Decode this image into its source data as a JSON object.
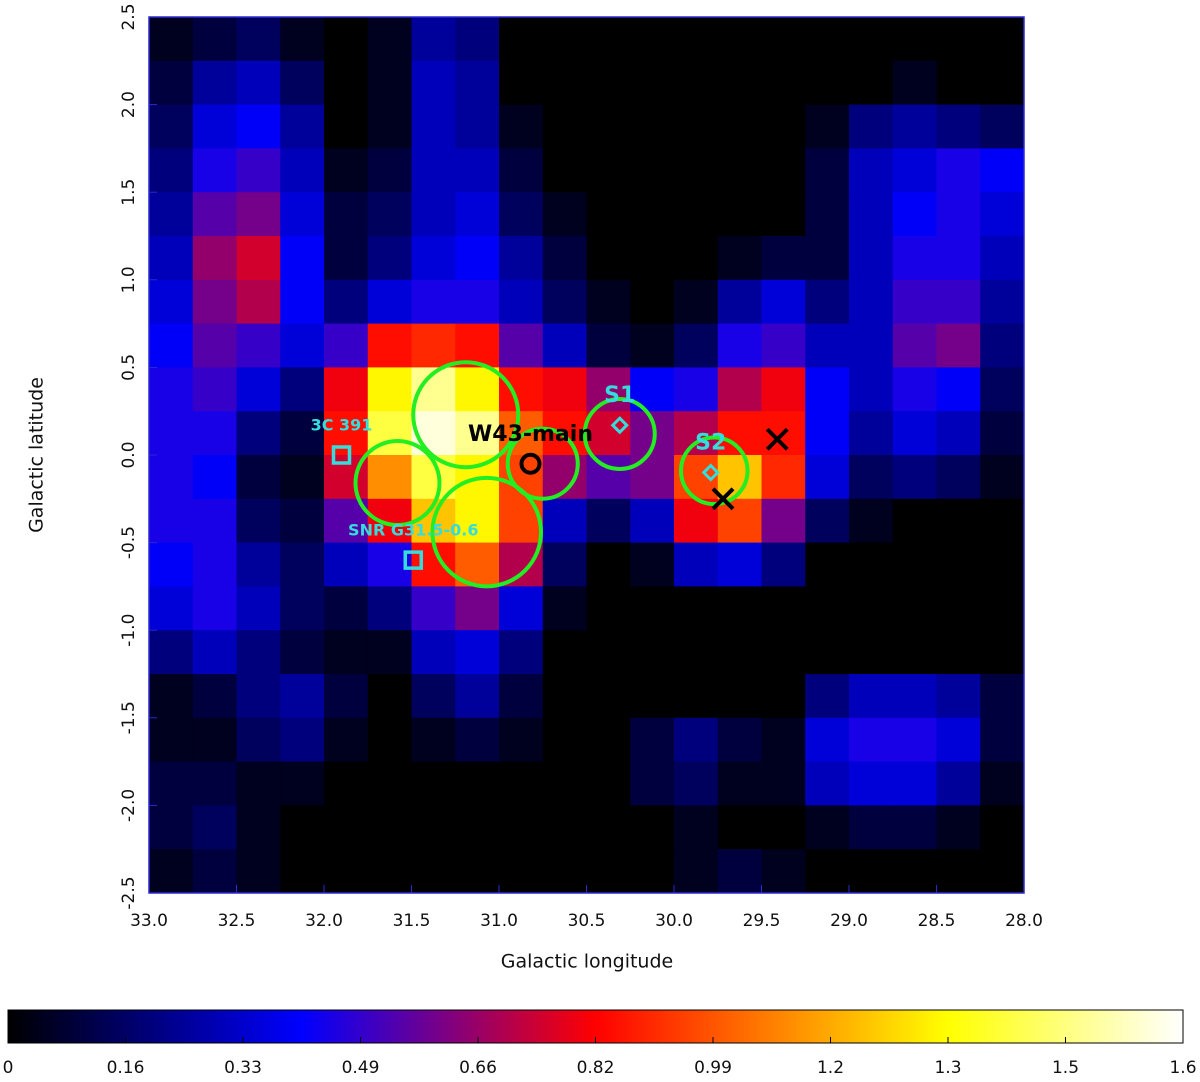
{
  "chart_data": {
    "type": "heatmap",
    "xlabel": "Galactic longitude",
    "ylabel": "Galactic latitude",
    "xlim": [
      33,
      28
    ],
    "ylim": [
      -2.5,
      2.5
    ],
    "xticks": [
      {
        "value": 33,
        "label": "33.0"
      },
      32.5,
      {
        "value": 32,
        "label": "32.0"
      },
      31.5,
      {
        "value": 31,
        "label": "31.0"
      },
      30.5,
      {
        "value": 30,
        "label": "30.0"
      },
      29.5,
      {
        "value": 29,
        "label": "29.0"
      },
      28.5,
      {
        "value": 28,
        "label": "28.0"
      }
    ],
    "yticks": [
      -2.5,
      {
        "value": -2,
        "label": "-2.0"
      },
      -1.5,
      {
        "value": -1,
        "label": "-1.0"
      },
      -0.5,
      {
        "value": 0,
        "label": "0.0"
      },
      0.5,
      {
        "value": 1,
        "label": "1.0"
      },
      1.5,
      {
        "value": 2,
        "label": "2.0"
      },
      2.5
    ],
    "colormap": [
      "#000000",
      "#0000ff",
      "#ff0000",
      "#ffff00",
      "#ffffff"
    ],
    "colormap_positions": [
      0,
      0.25,
      0.5,
      0.8,
      1
    ],
    "zlim": [
      0,
      1.645
    ],
    "zticks": [
      0,
      {
        "value": 0.1645,
        "label": "0.16"
      },
      {
        "value": 0.329,
        "label": "0.33"
      },
      {
        "value": 0.4935,
        "label": "0.49"
      },
      {
        "value": 0.658,
        "label": "0.66"
      },
      {
        "value": 0.8225,
        "label": "0.82"
      },
      {
        "value": 0.987,
        "label": "0.99"
      },
      {
        "value": 1.1515,
        "label": "1.2"
      },
      {
        "value": 1.316,
        "label": "1.3"
      },
      {
        "value": 1.4805,
        "label": "1.5"
      },
      {
        "value": 1.645,
        "label": "1.6"
      }
    ],
    "z": [
      [
        0.05,
        0.1,
        0.15,
        0.05,
        0,
        0.05,
        0.25,
        0.2,
        0,
        0,
        0,
        0,
        0,
        0,
        0,
        0,
        0,
        0,
        0,
        0
      ],
      [
        0.1,
        0.25,
        0.3,
        0.15,
        0,
        0.05,
        0.3,
        0.25,
        0,
        0,
        0,
        0,
        0,
        0,
        0,
        0,
        0,
        0.05,
        0,
        0
      ],
      [
        0.15,
        0.35,
        0.4,
        0.25,
        0,
        0.05,
        0.3,
        0.25,
        0.05,
        0,
        0,
        0,
        0,
        0,
        0,
        0.05,
        0.2,
        0.25,
        0.2,
        0.15
      ],
      [
        0.2,
        0.45,
        0.5,
        0.3,
        0.05,
        0.1,
        0.3,
        0.3,
        0.1,
        0,
        0,
        0,
        0,
        0,
        0,
        0.1,
        0.3,
        0.35,
        0.45,
        0.4
      ],
      [
        0.25,
        0.55,
        0.6,
        0.35,
        0.1,
        0.15,
        0.3,
        0.35,
        0.15,
        0.05,
        0,
        0,
        0,
        0,
        0,
        0.1,
        0.3,
        0.4,
        0.45,
        0.35
      ],
      [
        0.3,
        0.65,
        0.75,
        0.4,
        0.1,
        0.2,
        0.35,
        0.4,
        0.25,
        0.1,
        0,
        0,
        0,
        0.05,
        0.1,
        0.1,
        0.3,
        0.45,
        0.45,
        0.3
      ],
      [
        0.35,
        0.6,
        0.7,
        0.4,
        0.2,
        0.35,
        0.45,
        0.45,
        0.3,
        0.15,
        0.05,
        0,
        0.05,
        0.25,
        0.35,
        0.2,
        0.3,
        0.5,
        0.5,
        0.25
      ],
      [
        0.4,
        0.55,
        0.5,
        0.35,
        0.5,
        0.85,
        0.9,
        0.85,
        0.55,
        0.3,
        0.1,
        0.05,
        0.15,
        0.45,
        0.5,
        0.3,
        0.3,
        0.55,
        0.6,
        0.2
      ],
      [
        0.45,
        0.5,
        0.35,
        0.2,
        0.8,
        1.3,
        1.5,
        1.3,
        0.85,
        0.8,
        0.65,
        0.4,
        0.45,
        0.7,
        0.8,
        0.4,
        0.3,
        0.45,
        0.4,
        0.15
      ],
      [
        0.45,
        0.45,
        0.2,
        0.1,
        0.85,
        1.4,
        1.6,
        1.5,
        1.0,
        0.85,
        0.75,
        0.6,
        0.7,
        0.85,
        0.85,
        0.4,
        0.25,
        0.35,
        0.3,
        0.1
      ],
      [
        0.45,
        0.4,
        0.1,
        0.05,
        0.75,
        1.1,
        1.4,
        1.3,
        0.95,
        0.65,
        0.55,
        0.6,
        0.95,
        1.2,
        0.9,
        0.35,
        0.15,
        0.2,
        0.15,
        0.05
      ],
      [
        0.45,
        0.45,
        0.15,
        0.1,
        0.55,
        0.8,
        1.2,
        1.3,
        0.95,
        0.3,
        0.15,
        0.3,
        0.8,
        0.95,
        0.6,
        0.15,
        0.05,
        0,
        0,
        0
      ],
      [
        0.4,
        0.45,
        0.25,
        0.15,
        0.3,
        0.45,
        0.85,
        1.0,
        0.7,
        0.15,
        0,
        0.05,
        0.3,
        0.35,
        0.2,
        0,
        0,
        0,
        0,
        0
      ],
      [
        0.35,
        0.45,
        0.3,
        0.15,
        0.1,
        0.2,
        0.5,
        0.6,
        0.35,
        0.05,
        0,
        0,
        0,
        0,
        0,
        0,
        0,
        0,
        0,
        0
      ],
      [
        0.2,
        0.3,
        0.2,
        0.1,
        0.05,
        0.05,
        0.3,
        0.35,
        0.2,
        0,
        0,
        0,
        0,
        0,
        0,
        0,
        0,
        0,
        0,
        0
      ],
      [
        0.05,
        0.1,
        0.2,
        0.25,
        0.1,
        0,
        0.15,
        0.25,
        0.1,
        0,
        0,
        0,
        0,
        0,
        0,
        0.2,
        0.3,
        0.3,
        0.25,
        0.1
      ],
      [
        0.05,
        0.05,
        0.15,
        0.2,
        0.05,
        0,
        0.05,
        0.1,
        0.05,
        0,
        0,
        0.1,
        0.2,
        0.1,
        0.05,
        0.35,
        0.45,
        0.45,
        0.35,
        0.1
      ],
      [
        0.1,
        0.1,
        0.05,
        0.05,
        0,
        0,
        0,
        0,
        0,
        0,
        0,
        0.1,
        0.15,
        0.05,
        0.05,
        0.3,
        0.35,
        0.35,
        0.25,
        0.05
      ],
      [
        0.1,
        0.15,
        0.05,
        0,
        0,
        0,
        0,
        0,
        0,
        0,
        0,
        0,
        0.05,
        0,
        0,
        0.05,
        0.1,
        0.1,
        0.05,
        0
      ],
      [
        0.05,
        0.1,
        0.05,
        0,
        0,
        0,
        0,
        0,
        0,
        0,
        0,
        0,
        0.05,
        0.1,
        0.05,
        0,
        0,
        0,
        0,
        0
      ]
    ],
    "regions": [
      {
        "lon": 31.19,
        "lat": 0.23,
        "radius": 0.3,
        "color": "#22ee22"
      },
      {
        "lon": 31.58,
        "lat": -0.16,
        "radius": 0.24,
        "color": "#22ee22"
      },
      {
        "lon": 31.07,
        "lat": -0.44,
        "radius": 0.31,
        "color": "#22ee22"
      },
      {
        "lon": 30.75,
        "lat": -0.05,
        "radius": 0.2,
        "color": "#22ee22"
      },
      {
        "lon": 30.31,
        "lat": 0.12,
        "radius": 0.2,
        "color": "#22ee22"
      },
      {
        "lon": 29.77,
        "lat": -0.09,
        "radius": 0.19,
        "color": "#22ee22"
      }
    ],
    "markers": [
      {
        "symbol": "o",
        "lon": 30.82,
        "lat": -0.05,
        "color": "#000000",
        "label": "W43-main"
      },
      {
        "symbol": "diamond",
        "lon": 30.31,
        "lat": 0.17,
        "color": "#33dddd",
        "label": "S1"
      },
      {
        "symbol": "diamond",
        "lon": 29.79,
        "lat": -0.1,
        "color": "#33dddd",
        "label": "S2"
      },
      {
        "symbol": "square",
        "lon": 31.9,
        "lat": 0.0,
        "color": "#33dddd",
        "label": "3C 391"
      },
      {
        "symbol": "square",
        "lon": 31.49,
        "lat": -0.6,
        "color": "#33dddd",
        "label": "SNR G31.5-0.6"
      },
      {
        "symbol": "x",
        "lon": 29.41,
        "lat": 0.09,
        "color": "#000000"
      },
      {
        "symbol": "x",
        "lon": 29.72,
        "lat": -0.25,
        "color": "#000000"
      }
    ]
  }
}
